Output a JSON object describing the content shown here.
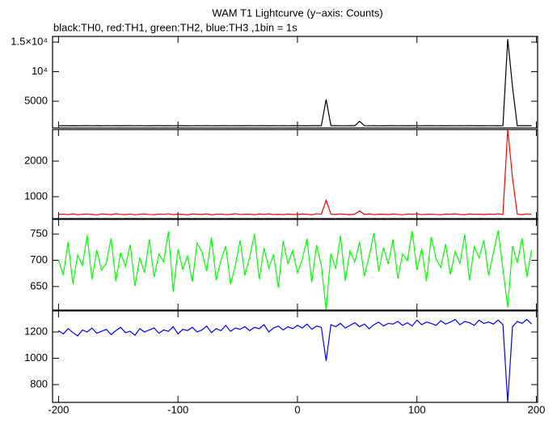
{
  "title": "WAM T1 Lightcurve (y−axis: Counts)",
  "subtitle": "black:TH0, red:TH1, green:TH2, blue:TH3 ,1bin = 1s",
  "chart_data": [
    {
      "type": "line",
      "color": "#000000",
      "ylim": [
        480,
        15960
      ],
      "yticks": [
        5000,
        {
          "value": 10000,
          "label": "10⁴"
        },
        {
          "value": 15000,
          "label": "1.5×10⁴"
        }
      ],
      "values": [
        850,
        862,
        845,
        858,
        840,
        866,
        852,
        848,
        860,
        843,
        855,
        849,
        864,
        841,
        857,
        852,
        846,
        861,
        850,
        844,
        858,
        853,
        840,
        866,
        849,
        855,
        860,
        842,
        851,
        857,
        846,
        862,
        850,
        844,
        859,
        853,
        848,
        865,
        841,
        856,
        852,
        847,
        860,
        855,
        843,
        864,
        850,
        858,
        846,
        853,
        861,
        849,
        844,
        857,
        852,
        866,
        5300,
        868,
        855,
        850,
        847,
        859,
        853,
        1600,
        862,
        848,
        856,
        851,
        845,
        860,
        854,
        849,
        863,
        842,
        857,
        851,
        846,
        860,
        853,
        848,
        858,
        844,
        861,
        850,
        855,
        847,
        864,
        852,
        843,
        859,
        851,
        856,
        845,
        862,
        15500,
        7400,
        848,
        860,
        853,
        857
      ]
    },
    {
      "type": "line",
      "color": "#ff0000",
      "ylim": [
        386,
        2886
      ],
      "yticks": [
        1000,
        2000
      ],
      "values": [
        505,
        512,
        498,
        520,
        495,
        508,
        515,
        502,
        490,
        518,
        510,
        497,
        522,
        504,
        500,
        515,
        493,
        509,
        517,
        501,
        496,
        513,
        507,
        521,
        499,
        511,
        505,
        494,
        516,
        508,
        503,
        519,
        492,
        510,
        514,
        498,
        506,
        523,
        501,
        509,
        511,
        495,
        517,
        504,
        520,
        500,
        508,
        496,
        513,
        505,
        499,
        516,
        507,
        493,
        521,
        510,
        900,
        512,
        502,
        518,
        506,
        497,
        514,
        600,
        503,
        520,
        495,
        511,
        508,
        500,
        517,
        504,
        493,
        515,
        509,
        521,
        498,
        506,
        512,
        501,
        495,
        513,
        508,
        519,
        502,
        497,
        516,
        505,
        511,
        499,
        514,
        506,
        520,
        503,
        2900,
        1520,
        509,
        497,
        518,
        512
      ]
    },
    {
      "type": "line",
      "color": "#00ff00",
      "ylim": [
        605,
        778
      ],
      "yticks": [
        650,
        700,
        750
      ],
      "values": [
        700,
        672,
        735,
        655,
        710,
        690,
        748,
        663,
        720,
        681,
        695,
        742,
        660,
        715,
        688,
        730,
        651,
        705,
        676,
        740,
        668,
        712,
        697,
        755,
        640,
        721,
        683,
        708,
        659,
        733,
        716,
        679,
        744,
        662,
        701,
        727,
        654,
        690,
        738,
        671,
        706,
        750,
        664,
        723,
        685,
        711,
        648,
        737,
        694,
        719,
        676,
        702,
        741,
        658,
        729,
        690,
        605,
        713,
        684,
        747,
        661,
        718,
        697,
        735,
        670,
        708,
        752,
        679,
        724,
        693,
        740,
        665,
        712,
        699,
        756,
        681,
        722,
        660,
        745,
        703,
        686,
        731,
        673,
        717,
        694,
        749,
        662,
        726,
        705,
        738,
        671,
        714,
        757,
        683,
        610,
        727,
        695,
        742,
        668,
        720
      ]
    },
    {
      "type": "line",
      "color": "#0000ff",
      "ylim": [
        665,
        1360
      ],
      "yticks": [
        800,
        1000,
        1200
      ],
      "xlim": [
        -205,
        201
      ],
      "xticks": [
        -200,
        -100,
        0,
        100,
        200
      ],
      "x": [
        -200,
        -196,
        -192,
        -188,
        -184,
        -180,
        -176,
        -172,
        -168,
        -164,
        -160,
        -156,
        -152,
        -148,
        -144,
        -140,
        -136,
        -132,
        -128,
        -124,
        -120,
        -116,
        -112,
        -108,
        -104,
        -100,
        -96,
        -92,
        -88,
        -84,
        -80,
        -76,
        -72,
        -68,
        -64,
        -60,
        -56,
        -52,
        -48,
        -44,
        -40,
        -36,
        -32,
        -28,
        -24,
        -20,
        -16,
        -12,
        -8,
        -4,
        0,
        4,
        8,
        12,
        16,
        20,
        24,
        28,
        32,
        36,
        40,
        44,
        48,
        52,
        56,
        60,
        64,
        68,
        72,
        76,
        80,
        84,
        88,
        92,
        96,
        100,
        104,
        108,
        112,
        116,
        120,
        124,
        128,
        132,
        136,
        140,
        144,
        148,
        152,
        156,
        160,
        164,
        168,
        172,
        176,
        180,
        184,
        188,
        192,
        196
      ],
      "values": [
        1210,
        1185,
        1225,
        1195,
        1170,
        1215,
        1200,
        1230,
        1190,
        1205,
        1220,
        1180,
        1210,
        1235,
        1195,
        1205,
        1175,
        1225,
        1200,
        1215,
        1230,
        1190,
        1215,
        1205,
        1240,
        1185,
        1220,
        1210,
        1235,
        1200,
        1215,
        1245,
        1195,
        1225,
        1210,
        1250,
        1205,
        1230,
        1220,
        1240,
        1210,
        1235,
        1225,
        1255,
        1200,
        1230,
        1245,
        1215,
        1240,
        1225,
        1250,
        1230,
        1260,
        1220,
        1245,
        1235,
        980,
        1255,
        1240,
        1265,
        1230,
        1250,
        1270,
        1240,
        1260,
        1225,
        1255,
        1275,
        1245,
        1265,
        1260,
        1280,
        1250,
        1270,
        1245,
        1290,
        1255,
        1275,
        1265,
        1250,
        1285,
        1260,
        1275,
        1295,
        1255,
        1280,
        1270,
        1250,
        1290,
        1265,
        1275,
        1260,
        1290,
        1255,
        665,
        1240,
        1280,
        1265,
        1295,
        1260
      ]
    }
  ]
}
